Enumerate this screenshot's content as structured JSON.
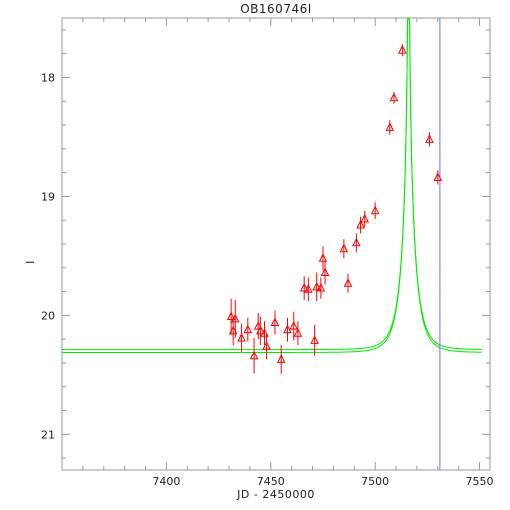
{
  "chart_data": {
    "type": "scatter",
    "title": "OB160746I",
    "xlabel": "JD - 2450000",
    "ylabel": "I",
    "xlim": [
      7350,
      7555
    ],
    "ylim": [
      21.3,
      17.5
    ],
    "y_inverted": true,
    "grid": false,
    "x_ticks": [
      7400,
      7450,
      7500,
      7550
    ],
    "x_tick_labels": [
      "7400",
      "7450",
      "7500",
      "7550"
    ],
    "y_ticks": [
      18,
      19,
      20,
      21
    ],
    "y_tick_labels": [
      "18",
      "19",
      "20",
      "21"
    ],
    "vertical_line_x": 7531,
    "colors": {
      "data": "#ff0000",
      "model": "#00ee00",
      "vline": "#7070ff",
      "axes": "#999999"
    },
    "series": [
      {
        "type": "errorbar",
        "marker": "triangle",
        "points": [
          {
            "x": 7431,
            "y": 20.01,
            "err": 0.15
          },
          {
            "x": 7432,
            "y": 20.13,
            "err": 0.12
          },
          {
            "x": 7433,
            "y": 20.03,
            "err": 0.16
          },
          {
            "x": 7436,
            "y": 20.19,
            "err": 0.12
          },
          {
            "x": 7439,
            "y": 20.12,
            "err": 0.1
          },
          {
            "x": 7442,
            "y": 20.34,
            "err": 0.15
          },
          {
            "x": 7444,
            "y": 20.09,
            "err": 0.11
          },
          {
            "x": 7445,
            "y": 20.13,
            "err": 0.12
          },
          {
            "x": 7447,
            "y": 20.15,
            "err": 0.1
          },
          {
            "x": 7448,
            "y": 20.26,
            "err": 0.11
          },
          {
            "x": 7452,
            "y": 20.06,
            "err": 0.1
          },
          {
            "x": 7455,
            "y": 20.37,
            "err": 0.12
          },
          {
            "x": 7458,
            "y": 20.12,
            "err": 0.1
          },
          {
            "x": 7461,
            "y": 20.09,
            "err": 0.12
          },
          {
            "x": 7463,
            "y": 20.15,
            "err": 0.1
          },
          {
            "x": 7466,
            "y": 19.77,
            "err": 0.1
          },
          {
            "x": 7468,
            "y": 19.78,
            "err": 0.1
          },
          {
            "x": 7471,
            "y": 20.21,
            "err": 0.13
          },
          {
            "x": 7472,
            "y": 19.76,
            "err": 0.12
          },
          {
            "x": 7474,
            "y": 19.77,
            "err": 0.09
          },
          {
            "x": 7475,
            "y": 19.52,
            "err": 0.1
          },
          {
            "x": 7476,
            "y": 19.64,
            "err": 0.1
          },
          {
            "x": 7485,
            "y": 19.44,
            "err": 0.08
          },
          {
            "x": 7487,
            "y": 19.73,
            "err": 0.08
          },
          {
            "x": 7491,
            "y": 19.39,
            "err": 0.08
          },
          {
            "x": 7493,
            "y": 19.24,
            "err": 0.07
          },
          {
            "x": 7495,
            "y": 19.19,
            "err": 0.07
          },
          {
            "x": 7500,
            "y": 19.12,
            "err": 0.07
          },
          {
            "x": 7507,
            "y": 18.42,
            "err": 0.06
          },
          {
            "x": 7509,
            "y": 18.17,
            "err": 0.05
          },
          {
            "x": 7513,
            "y": 17.77,
            "err": 0.05
          },
          {
            "x": 7526,
            "y": 18.52,
            "err": 0.06
          },
          {
            "x": 7530,
            "y": 18.84,
            "err": 0.06
          }
        ]
      },
      {
        "type": "line",
        "model": "microlensing-fit",
        "t0": 7516,
        "tE": 6.4,
        "u0": 0.0,
        "i_base": 20.3,
        "x_range": [
          7350,
          7551
        ],
        "band_offset": 0.012
      }
    ]
  }
}
